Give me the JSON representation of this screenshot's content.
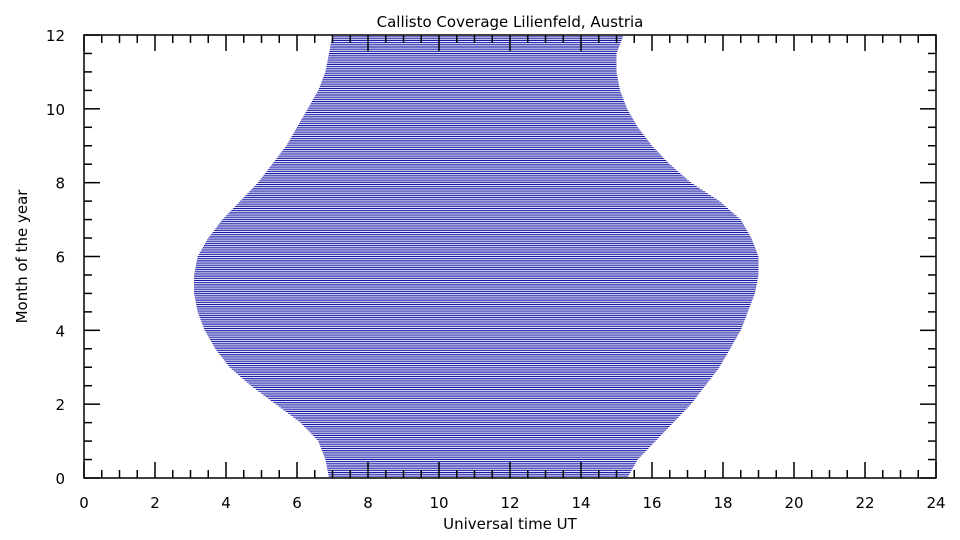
{
  "chart_data": {
    "type": "area",
    "title": "Callisto Coverage Lilienfeld, Austria",
    "xlabel": "Universal time UT",
    "ylabel": "Month of the year",
    "xlim": [
      0,
      24
    ],
    "ylim": [
      0,
      12
    ],
    "x_ticks": [
      0,
      2,
      4,
      6,
      8,
      10,
      12,
      14,
      16,
      18,
      20,
      22,
      24
    ],
    "y_ticks": [
      0,
      2,
      4,
      6,
      8,
      10,
      12
    ],
    "x_minor_step": 0.5,
    "y_minor_step": 0.5,
    "fill_style": "horizontal-hatch",
    "line_step_months": 0.05,
    "color": "#1a1aa8",
    "grid": false,
    "coverage": {
      "month": [
        0.0,
        0.5,
        1.0,
        1.5,
        2.0,
        2.5,
        3.0,
        3.5,
        4.0,
        4.5,
        5.0,
        5.5,
        6.0,
        6.5,
        7.0,
        7.5,
        8.0,
        8.5,
        9.0,
        9.5,
        10.0,
        10.5,
        11.0,
        11.5,
        12.0
      ],
      "start_ut": [
        6.9,
        6.8,
        6.6,
        6.1,
        5.4,
        4.7,
        4.1,
        3.7,
        3.4,
        3.2,
        3.1,
        3.1,
        3.2,
        3.5,
        3.9,
        4.4,
        4.9,
        5.3,
        5.7,
        6.0,
        6.3,
        6.6,
        6.8,
        6.9,
        7.0
      ],
      "end_ut": [
        15.3,
        15.6,
        16.1,
        16.6,
        17.1,
        17.5,
        17.9,
        18.2,
        18.5,
        18.7,
        18.9,
        19.0,
        19.0,
        18.8,
        18.5,
        17.9,
        17.1,
        16.5,
        16.0,
        15.6,
        15.3,
        15.1,
        15.0,
        15.0,
        15.2
      ]
    }
  }
}
